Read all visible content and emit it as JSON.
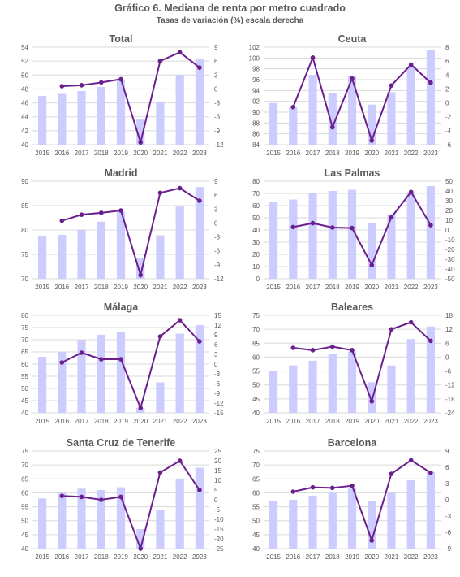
{
  "title": "Gráfico 6. Mediana de renta por metro cuadrado",
  "subtitle": "Tasas de variación (%) escala derecha",
  "colors": {
    "bar": "#ccccff",
    "line": "#6a1f8c",
    "grid": "#d9d9d9",
    "axis_text": "#595959"
  },
  "chart_data": [
    {
      "type": "bar+line",
      "title": "Total",
      "categories": [
        "2015",
        "2016",
        "2017",
        "2018",
        "2019",
        "2020",
        "2021",
        "2022",
        "2023"
      ],
      "left_axis": {
        "min": 40,
        "max": 54,
        "ticks": [
          40,
          42,
          44,
          46,
          48,
          50,
          52,
          54
        ]
      },
      "right_axis": {
        "min": -12,
        "max": 9,
        "ticks": [
          -12,
          -9,
          -6,
          -3,
          0,
          3,
          6,
          9
        ]
      },
      "bars": [
        47.0,
        47.3,
        47.7,
        48.3,
        49.3,
        43.6,
        46.2,
        50.0,
        52.3
      ],
      "line": [
        null,
        0.6,
        0.8,
        1.4,
        2.1,
        -11.5,
        6.0,
        7.9,
        4.6
      ]
    },
    {
      "type": "bar+line",
      "title": "Ceuta",
      "categories": [
        "2015",
        "2016",
        "2017",
        "2018",
        "2019",
        "2020",
        "2021",
        "2022",
        "2023"
      ],
      "left_axis": {
        "min": 84,
        "max": 102,
        "ticks": [
          84,
          86,
          88,
          90,
          92,
          94,
          96,
          98,
          100,
          102
        ]
      },
      "right_axis": {
        "min": -6,
        "max": 8,
        "ticks": [
          -6,
          -4,
          -2,
          0,
          2,
          4,
          6,
          8
        ]
      },
      "bars": [
        91.7,
        90.9,
        96.9,
        93.5,
        96.7,
        91.4,
        93.7,
        98.3,
        101.5
      ],
      "line": [
        null,
        -0.6,
        6.5,
        -3.5,
        3.5,
        -5.4,
        2.5,
        5.5,
        2.9
      ]
    },
    {
      "type": "bar+line",
      "title": "Madrid",
      "categories": [
        "2015",
        "2016",
        "2017",
        "2018",
        "2019",
        "2020",
        "2021",
        "2022",
        "2023"
      ],
      "left_axis": {
        "min": 70,
        "max": 90,
        "ticks": [
          70,
          75,
          80,
          85,
          90
        ]
      },
      "right_axis": {
        "min": -12,
        "max": 9,
        "ticks": [
          -12,
          -9,
          -6,
          -3,
          0,
          3,
          6,
          9
        ]
      },
      "bars": [
        78.8,
        79.0,
        80.0,
        81.7,
        83.7,
        74.2,
        78.9,
        84.8,
        88.8
      ],
      "line": [
        null,
        0.5,
        1.8,
        2.2,
        2.7,
        -11.2,
        6.5,
        7.5,
        4.8
      ]
    },
    {
      "type": "bar+line",
      "title": "Las Palmas",
      "categories": [
        "2015",
        "2016",
        "2017",
        "2018",
        "2019",
        "2020",
        "2021",
        "2022",
        "2023"
      ],
      "left_axis": {
        "min": 0,
        "max": 80,
        "ticks": [
          0,
          10,
          20,
          30,
          40,
          50,
          60,
          70,
          80
        ]
      },
      "right_axis": {
        "min": -50,
        "max": 50,
        "ticks": [
          -50,
          -40,
          -30,
          -20,
          -10,
          0,
          10,
          20,
          30,
          40,
          50
        ]
      },
      "bars": [
        63.0,
        65.0,
        70.0,
        72.0,
        73.0,
        46.0,
        53.0,
        71.0,
        76.0
      ],
      "line": [
        null,
        3.0,
        7.0,
        2.5,
        2.0,
        -36.0,
        13.0,
        39.0,
        5.0
      ]
    },
    {
      "type": "bar+line",
      "title": "Málaga",
      "categories": [
        "2015",
        "2016",
        "2017",
        "2018",
        "2019",
        "2020",
        "2021",
        "2022",
        "2023"
      ],
      "left_axis": {
        "min": 40,
        "max": 80,
        "ticks": [
          40,
          45,
          50,
          55,
          60,
          65,
          70,
          75,
          80
        ]
      },
      "right_axis": {
        "min": -15,
        "max": 15,
        "ticks": [
          -15,
          -12,
          -9,
          -6,
          -3,
          0,
          3,
          6,
          9,
          12,
          15
        ]
      },
      "bars": [
        63.0,
        65.0,
        70.0,
        72.0,
        73.0,
        42.0,
        52.5,
        72.5,
        76.0
      ],
      "line": [
        null,
        0.5,
        3.5,
        1.5,
        1.5,
        -13.5,
        8.5,
        13.5,
        7.0
      ]
    },
    {
      "type": "bar+line",
      "title": "Baleares",
      "categories": [
        "2015",
        "2016",
        "2017",
        "2018",
        "2019",
        "2020",
        "2021",
        "2022",
        "2023"
      ],
      "left_axis": {
        "min": 40,
        "max": 75,
        "ticks": [
          40,
          45,
          50,
          55,
          60,
          65,
          70,
          75
        ]
      },
      "right_axis": {
        "min": -24,
        "max": 18,
        "ticks": [
          -24,
          -18,
          -12,
          -6,
          0,
          6,
          12,
          18
        ]
      },
      "bars": [
        55.0,
        57.0,
        58.7,
        61.2,
        62.0,
        51.0,
        57.0,
        66.5,
        71.0
      ],
      "line": [
        null,
        4.0,
        3.0,
        4.5,
        3.0,
        -19.0,
        12.0,
        15.0,
        7.0
      ]
    },
    {
      "type": "bar+line",
      "title": "Santa Cruz de Tenerife",
      "categories": [
        "2015",
        "2016",
        "2017",
        "2018",
        "2019",
        "2020",
        "2021",
        "2022",
        "2023"
      ],
      "left_axis": {
        "min": 40,
        "max": 75,
        "ticks": [
          40,
          45,
          50,
          55,
          60,
          65,
          70,
          75
        ]
      },
      "right_axis": {
        "min": -25,
        "max": 25,
        "ticks": [
          -25,
          -20,
          -15,
          -10,
          -5,
          0,
          5,
          10,
          15,
          20,
          25
        ]
      },
      "bars": [
        58.0,
        60.0,
        61.5,
        61.0,
        62.0,
        47.0,
        54.0,
        65.0,
        69.0
      ],
      "line": [
        null,
        2.0,
        1.5,
        0.0,
        1.5,
        -25.0,
        14.0,
        20.0,
        5.0
      ]
    },
    {
      "type": "bar+line",
      "title": "Barcelona",
      "categories": [
        "2015",
        "2016",
        "2017",
        "2018",
        "2019",
        "2020",
        "2021",
        "2022",
        "2023"
      ],
      "left_axis": {
        "min": 40,
        "max": 75,
        "ticks": [
          40,
          45,
          50,
          55,
          60,
          65,
          70,
          75
        ]
      },
      "right_axis": {
        "min": -9,
        "max": 9,
        "ticks": [
          -9,
          -6,
          -3,
          0,
          3,
          6,
          9
        ]
      },
      "bars": [
        57.0,
        57.5,
        59.0,
        60.0,
        61.5,
        57.0,
        60.0,
        64.5,
        67.5
      ],
      "line": [
        null,
        1.5,
        2.3,
        2.2,
        2.6,
        -7.5,
        4.8,
        7.3,
        5.0
      ]
    }
  ]
}
